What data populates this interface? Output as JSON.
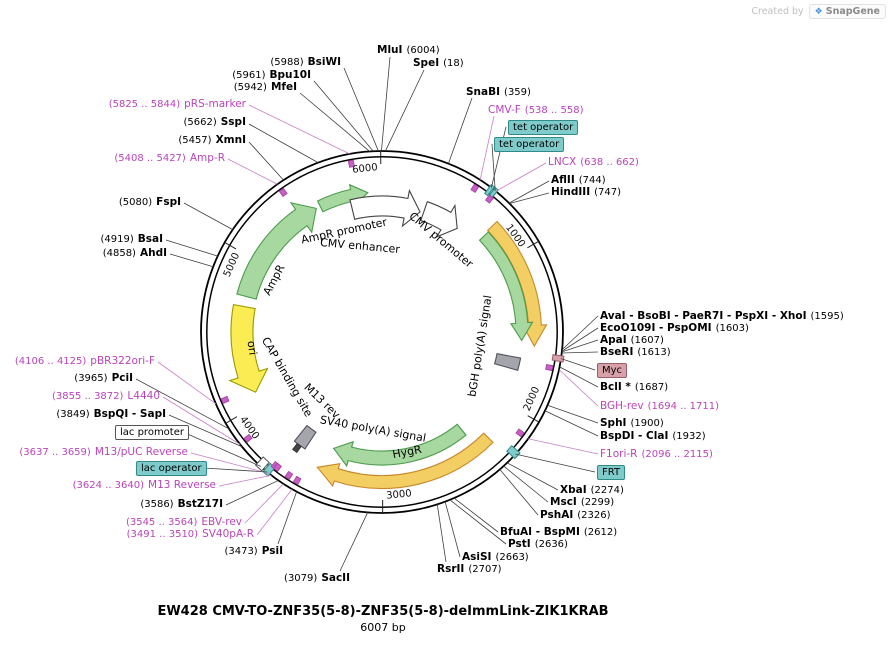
{
  "watermark": {
    "created_by": "Created by",
    "brand": "SnapGene"
  },
  "title": {
    "name": "EW428 CMV-TO-ZNF35(5-8)-ZNF35(5-8)-deImmLink-ZIK1KRAB",
    "size": "6007 bp"
  },
  "plasmid": {
    "length_bp": 6007,
    "tick_labels": [
      "1000",
      "2000",
      "3000",
      "4000",
      "5000",
      "6000"
    ]
  },
  "features": {
    "ampr_promoter": "AmpR promoter",
    "cmv_enh": "CMV enhancer",
    "cmv_prom": "CMV promoter",
    "ampr": "AmpR",
    "ori": "ori",
    "cap": "CAP binding site",
    "m13rev": "M13 rev",
    "sv40pa": "SV40 poly(A) signal",
    "hygr": "HygR",
    "bghpa": "bGH poly(A) signal"
  },
  "boxes": {
    "tet1": "tet operator",
    "tet2": "tet operator",
    "myc": "Myc",
    "frt": "FRT",
    "laco": "lac operator",
    "lacp": "lac promoter"
  },
  "sites": {
    "mlui": {
      "n": "MluI",
      "p": "(6004)"
    },
    "spei": {
      "n": "SpeI",
      "p": "(18)"
    },
    "bsiwi": {
      "n": "BsiWI",
      "p": "(5988)"
    },
    "bpu10i": {
      "n": "Bpu10I",
      "p": "(5961)"
    },
    "mfei": {
      "n": "MfeI",
      "p": "(5942)"
    },
    "snabi": {
      "n": "SnaBI",
      "p": "(359)"
    },
    "sspi": {
      "n": "SspI",
      "p": "(5662)"
    },
    "xmni": {
      "n": "XmnI",
      "p": "(5457)"
    },
    "aflii": {
      "n": "AflII",
      "p": "(744)"
    },
    "hindiii": {
      "n": "HindIII",
      "p": "(747)"
    },
    "fspi": {
      "n": "FspI",
      "p": "(5080)"
    },
    "bsai": {
      "n": "BsaI",
      "p": "(4919)"
    },
    "ahdi": {
      "n": "AhdI",
      "p": "(4858)"
    },
    "avai": {
      "n": "AvaI - BsoBI - PaeR7I - PspXI - XhoI",
      "p": "(1595)"
    },
    "eco": {
      "n": "EcoO109I - PspOMI",
      "p": "(1603)"
    },
    "apai": {
      "n": "ApaI",
      "p": "(1607)"
    },
    "bseri": {
      "n": "BseRI",
      "p": "(1613)"
    },
    "bcli": {
      "n": "BclI *",
      "p": "(1687)"
    },
    "sphi": {
      "n": "SphI",
      "p": "(1900)"
    },
    "bspdi": {
      "n": "BspDI - ClaI",
      "p": "(1932)"
    },
    "xbai": {
      "n": "XbaI",
      "p": "(2274)"
    },
    "msci": {
      "n": "MscI",
      "p": "(2299)"
    },
    "pshai": {
      "n": "PshAI",
      "p": "(2326)"
    },
    "bfuai": {
      "n": "BfuAI - BspMI",
      "p": "(2612)"
    },
    "psti": {
      "n": "PstI",
      "p": "(2636)"
    },
    "asisi": {
      "n": "AsiSI",
      "p": "(2663)"
    },
    "rsrii": {
      "n": "RsrII",
      "p": "(2707)"
    },
    "sacii": {
      "n": "SacII",
      "p": "(3079)"
    },
    "psii": {
      "n": "PsiI",
      "p": "(3473)"
    },
    "bstz17i": {
      "n": "BstZ17I",
      "p": "(3586)"
    },
    "pcii": {
      "n": "PciI",
      "p": "(3965)"
    },
    "bspqi": {
      "n": "BspQI - SapI",
      "p": "(3849)"
    }
  },
  "primers": {
    "cmvf": {
      "n": "CMV-F",
      "p": "(538 .. 558)"
    },
    "prs": {
      "n": "pRS-marker",
      "p": "(5825 .. 5844)"
    },
    "lncx": {
      "n": "LNCX",
      "p": "(638 .. 662)"
    },
    "ampr_r": {
      "n": "Amp-R",
      "p": "(5408 .. 5427)"
    },
    "bghrev": {
      "n": "BGH-rev",
      "p": "(1694 .. 1711)"
    },
    "f1ori": {
      "n": "F1ori-R",
      "p": "(2096 .. 2115)"
    },
    "pbr": {
      "n": "pBR322ori-F",
      "p": "(4106 .. 4125)"
    },
    "l4440": {
      "n": "L4440",
      "p": "(3855 .. 3872)"
    },
    "m13puc": {
      "n": "M13/pUC Reverse",
      "p": "(3637 .. 3659)"
    },
    "m13rev": {
      "n": "M13 Reverse",
      "p": "(3624 .. 3640)"
    },
    "ebv": {
      "n": "EBV-rev",
      "p": "(3545 .. 3564)"
    },
    "sv40par": {
      "n": "SV40pA-R",
      "p": "(3491 .. 3510)"
    }
  },
  "colors": {
    "primer_text": "#B944B9",
    "teal_tag": "#7FCBCB",
    "pink_tag": "#D8A0A8",
    "green_cds": "#A6D8A0",
    "orange_cds": "#F3CE63",
    "yellow_ori": "#FBEC54",
    "gray_polya": "#A5A5AE",
    "backbone": "#000000"
  }
}
